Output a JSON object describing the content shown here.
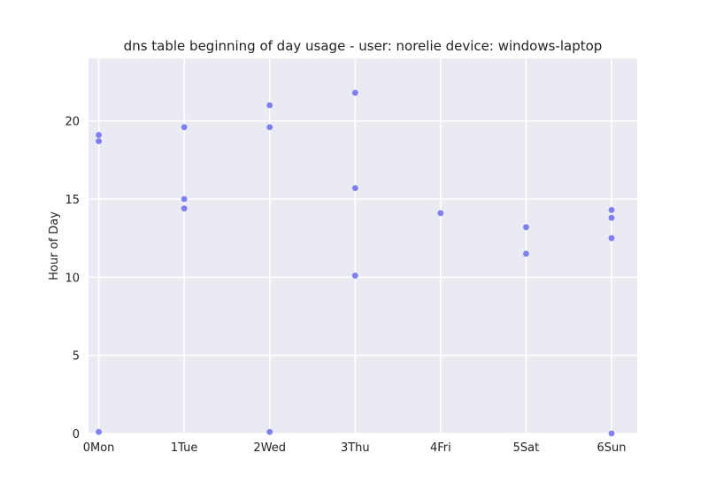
{
  "chart_data": {
    "type": "scatter",
    "title": "dns table beginning of day usage -  user: norelie device: windows-laptop",
    "xlabel": "",
    "ylabel": "Hour of Day",
    "x_categories": [
      "0Mon",
      "1Tue",
      "2Wed",
      "3Thu",
      "4Fri",
      "5Sat",
      "6Sun"
    ],
    "xlim": [
      -0.12,
      6.3
    ],
    "ylim": [
      0,
      24
    ],
    "y_ticks": [
      0,
      5,
      10,
      15,
      20
    ],
    "grid": true,
    "legend": "none",
    "series": [
      {
        "color": "#6b6bf0",
        "points": [
          {
            "x": 0,
            "y": 19.1
          },
          {
            "x": 0,
            "y": 18.7
          },
          {
            "x": 0,
            "y": 0.1
          },
          {
            "x": 1,
            "y": 19.6
          },
          {
            "x": 1,
            "y": 15.0
          },
          {
            "x": 1,
            "y": 14.4
          },
          {
            "x": 2,
            "y": 21.0
          },
          {
            "x": 2,
            "y": 19.6
          },
          {
            "x": 2,
            "y": 0.1
          },
          {
            "x": 3,
            "y": 21.8
          },
          {
            "x": 3,
            "y": 15.7
          },
          {
            "x": 3,
            "y": 10.1
          },
          {
            "x": 4,
            "y": 14.1
          },
          {
            "x": 5,
            "y": 13.2
          },
          {
            "x": 5,
            "y": 11.5
          },
          {
            "x": 6,
            "y": 14.3
          },
          {
            "x": 6,
            "y": 13.8
          },
          {
            "x": 6,
            "y": 12.5
          },
          {
            "x": 6,
            "y": 0.0
          }
        ]
      }
    ],
    "colors": {
      "background": "#eaeaf2",
      "grid": "#ffffff",
      "marker": "#6b6bf0"
    }
  }
}
